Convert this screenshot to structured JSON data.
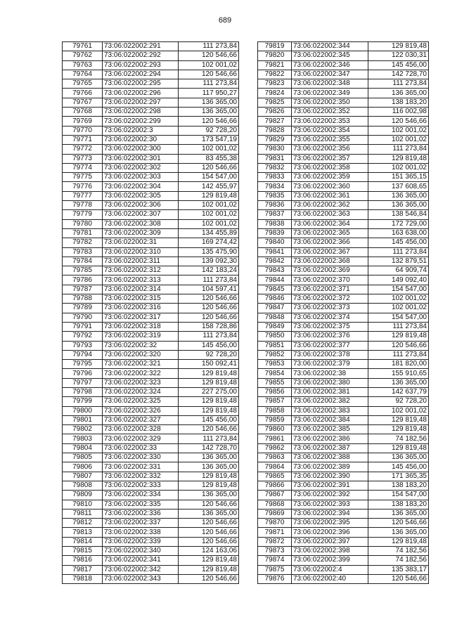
{
  "page_number": "689",
  "left_table": [
    [
      "79761",
      "73:06:022002:291",
      "111 273,84"
    ],
    [
      "79762",
      "73:06:022002:292",
      "120 546,66"
    ],
    [
      "79763",
      "73:06:022002:293",
      "102 001,02"
    ],
    [
      "79764",
      "73:06:022002:294",
      "120 546,66"
    ],
    [
      "79765",
      "73:06:022002:295",
      "111 273,84"
    ],
    [
      "79766",
      "73:06:022002:296",
      "117 950,27"
    ],
    [
      "79767",
      "73:06:022002:297",
      "136 365,00"
    ],
    [
      "79768",
      "73:06:022002:298",
      "136 365,00"
    ],
    [
      "79769",
      "73:06:022002:299",
      "120 546,66"
    ],
    [
      "79770",
      "73:06:022002:3",
      "92 728,20"
    ],
    [
      "79771",
      "73:06:022002:30",
      "173 547,19"
    ],
    [
      "79772",
      "73:06:022002:300",
      "102 001,02"
    ],
    [
      "79773",
      "73:06:022002:301",
      "83 455,38"
    ],
    [
      "79774",
      "73:06:022002:302",
      "120 546,66"
    ],
    [
      "79775",
      "73:06:022002:303",
      "154 547,00"
    ],
    [
      "79776",
      "73:06:022002:304",
      "142 455,97"
    ],
    [
      "79777",
      "73:06:022002:305",
      "129 819,48"
    ],
    [
      "79778",
      "73:06:022002:306",
      "102 001,02"
    ],
    [
      "79779",
      "73:06:022002:307",
      "102 001,02"
    ],
    [
      "79780",
      "73:06:022002:308",
      "102 001,02"
    ],
    [
      "79781",
      "73:06:022002:309",
      "134 455,89"
    ],
    [
      "79782",
      "73:06:022002:31",
      "169 274,42"
    ],
    [
      "79783",
      "73:06:022002:310",
      "135 475,90"
    ],
    [
      "79784",
      "73:06:022002:311",
      "139 092,30"
    ],
    [
      "79785",
      "73:06:022002:312",
      "142 183,24"
    ],
    [
      "79786",
      "73:06:022002:313",
      "111 273,84"
    ],
    [
      "79787",
      "73:06:022002:314",
      "104 597,41"
    ],
    [
      "79788",
      "73:06:022002:315",
      "120 546,66"
    ],
    [
      "79789",
      "73:06:022002:316",
      "120 546,66"
    ],
    [
      "79790",
      "73:06:022002:317",
      "120 546,66"
    ],
    [
      "79791",
      "73:06:022002:318",
      "158 728,86"
    ],
    [
      "79792",
      "73:06:022002:319",
      "111 273,84"
    ],
    [
      "79793",
      "73:06:022002:32",
      "145 456,00"
    ],
    [
      "79794",
      "73:06:022002:320",
      "92 728,20"
    ],
    [
      "79795",
      "73:06:022002:321",
      "150 092,41"
    ],
    [
      "79796",
      "73:06:022002:322",
      "129 819,48"
    ],
    [
      "79797",
      "73:06:022002:323",
      "129 819,48"
    ],
    [
      "79798",
      "73:06:022002:324",
      "227 275,00"
    ],
    [
      "79799",
      "73:06:022002:325",
      "129 819,48"
    ],
    [
      "79800",
      "73:06:022002:326",
      "129 819,48"
    ],
    [
      "79801",
      "73:06:022002:327",
      "145 456,00"
    ],
    [
      "79802",
      "73:06:022002:328",
      "120 546,66"
    ],
    [
      "79803",
      "73:06:022002:329",
      "111 273,84"
    ],
    [
      "79804",
      "73:06:022002:33",
      "142 728,70"
    ],
    [
      "79805",
      "73:06:022002:330",
      "136 365,00"
    ],
    [
      "79806",
      "73:06:022002:331",
      "136 365,00"
    ],
    [
      "79807",
      "73:06:022002:332",
      "129 819,48"
    ],
    [
      "79808",
      "73:06:022002:333",
      "129 819,48"
    ],
    [
      "79809",
      "73:06:022002:334",
      "136 365,00"
    ],
    [
      "79810",
      "73:06:022002:335",
      "120 546,66"
    ],
    [
      "79811",
      "73:06:022002:336",
      "136 365,00"
    ],
    [
      "79812",
      "73:06:022002:337",
      "120 546,66"
    ],
    [
      "79813",
      "73:06:022002:338",
      "120 546,66"
    ],
    [
      "79814",
      "73:06:022002:339",
      "120 546,66"
    ],
    [
      "79815",
      "73:06:022002:340",
      "124 163,06"
    ],
    [
      "79816",
      "73:06:022002:341",
      "129 819,48"
    ],
    [
      "79817",
      "73:06:022002:342",
      "129 819,48"
    ],
    [
      "79818",
      "73:06:022002:343",
      "120 546,66"
    ]
  ],
  "right_table": [
    [
      "79819",
      "73:06:022002:344",
      "129 819,48"
    ],
    [
      "79820",
      "73:06:022002:345",
      "122 030,31"
    ],
    [
      "79821",
      "73:06:022002:346",
      "145 456,00"
    ],
    [
      "79822",
      "73:06:022002:347",
      "142 728,70"
    ],
    [
      "79823",
      "73:06:022002:348",
      "111 273,84"
    ],
    [
      "79824",
      "73:06:022002:349",
      "136 365,00"
    ],
    [
      "79825",
      "73:06:022002:350",
      "138 183,20"
    ],
    [
      "79826",
      "73:06:022002:352",
      "116 002,98"
    ],
    [
      "79827",
      "73:06:022002:353",
      "120 546,66"
    ],
    [
      "79828",
      "73:06:022002:354",
      "102 001,02"
    ],
    [
      "79829",
      "73:06:022002:355",
      "102 001,02"
    ],
    [
      "79830",
      "73:06:022002:356",
      "111 273,84"
    ],
    [
      "79831",
      "73:06:022002:357",
      "129 819,48"
    ],
    [
      "79832",
      "73:06:022002:358",
      "102 001,02"
    ],
    [
      "79833",
      "73:06:022002:359",
      "151 365,15"
    ],
    [
      "79834",
      "73:06:022002:360",
      "137 608,65"
    ],
    [
      "79835",
      "73:06:022002:361",
      "136 365,00"
    ],
    [
      "79836",
      "73:06:022002:362",
      "136 365,00"
    ],
    [
      "79837",
      "73:06:022002:363",
      "138 546,84"
    ],
    [
      "79838",
      "73:06:022002:364",
      "172 729,00"
    ],
    [
      "79839",
      "73:06:022002:365",
      "163 638,00"
    ],
    [
      "79840",
      "73:06:022002:366",
      "145 456,00"
    ],
    [
      "79841",
      "73:06:022002:367",
      "111 273,84"
    ],
    [
      "79842",
      "73:06:022002:368",
      "132 879,51"
    ],
    [
      "79843",
      "73:06:022002:369",
      "64 909,74"
    ],
    [
      "79844",
      "73:06:022002:370",
      "149 092,40"
    ],
    [
      "79845",
      "73:06:022002:371",
      "154 547,00"
    ],
    [
      "79846",
      "73:06:022002:372",
      "102 001,02"
    ],
    [
      "79847",
      "73:06:022002:373",
      "102 001,02"
    ],
    [
      "79848",
      "73:06:022002:374",
      "154 547,00"
    ],
    [
      "79849",
      "73:06:022002:375",
      "111 273,84"
    ],
    [
      "79850",
      "73:06:022002:376",
      "129 819,48"
    ],
    [
      "79851",
      "73:06:022002:377",
      "120 546,66"
    ],
    [
      "79852",
      "73:06:022002:378",
      "111 273,84"
    ],
    [
      "79853",
      "73:06:022002:379",
      "181 820,00"
    ],
    [
      "79854",
      "73:06:022002:38",
      "155 910,65"
    ],
    [
      "79855",
      "73:06:022002:380",
      "136 365,00"
    ],
    [
      "79856",
      "73:06:022002:381",
      "142 637,79"
    ],
    [
      "79857",
      "73:06:022002:382",
      "92 728,20"
    ],
    [
      "79858",
      "73:06:022002:383",
      "102 001,02"
    ],
    [
      "79859",
      "73:06:022002:384",
      "129 819,48"
    ],
    [
      "79860",
      "73:06:022002:385",
      "129 819,48"
    ],
    [
      "79861",
      "73:06:022002:386",
      "74 182,56"
    ],
    [
      "79862",
      "73:06:022002:387",
      "129 819,48"
    ],
    [
      "79863",
      "73:06:022002:388",
      "136 365,00"
    ],
    [
      "79864",
      "73:06:022002:389",
      "145 456,00"
    ],
    [
      "79865",
      "73:06:022002:390",
      "171 365,35"
    ],
    [
      "79866",
      "73:06:022002:391",
      "138 183,20"
    ],
    [
      "79867",
      "73:06:022002:392",
      "154 547,00"
    ],
    [
      "79868",
      "73:06:022002:393",
      "138 183,20"
    ],
    [
      "79869",
      "73:06:022002:394",
      "136 365,00"
    ],
    [
      "79870",
      "73:06:022002:395",
      "120 546,66"
    ],
    [
      "79871",
      "73:06:022002:396",
      "136 365,00"
    ],
    [
      "79872",
      "73:06:022002:397",
      "129 819,48"
    ],
    [
      "79873",
      "73:06:022002:398",
      "74 182,56"
    ],
    [
      "79874",
      "73:06:022002:399",
      "74 182,56"
    ],
    [
      "79875",
      "73:06:022002:4",
      "135 383,17"
    ],
    [
      "79876",
      "73:06:022002:40",
      "120 546,66"
    ]
  ]
}
